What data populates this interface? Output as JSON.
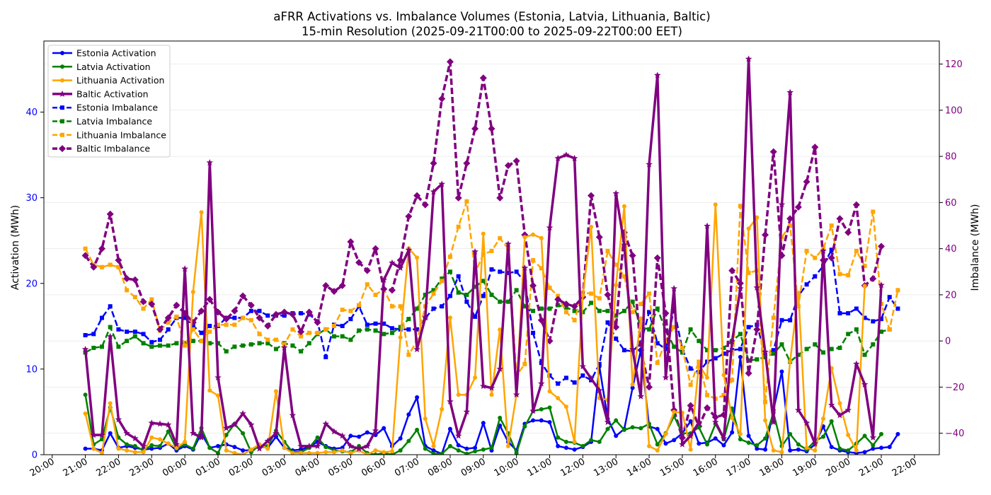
{
  "chart_data": {
    "type": "line",
    "title_line1": "aFRR Activations vs. Imbalance Volumes (Estonia, Latvia, Lithuania, Baltic)",
    "title_line2": "15-min Resolution (2025-09-21T00:00 to 2025-09-22T00:00 EET)",
    "ylabel_left": "Activation (MWh)",
    "ylabel_right": "Imbalance (MWh)",
    "ylim_left": [
      0,
      48.3
    ],
    "ylim_right": [
      -49.3,
      130
    ],
    "x_range_hours": [
      19.75,
      46.75
    ],
    "x_ticks": [
      {
        "h": 20,
        "label": "20:00"
      },
      {
        "h": 21,
        "label": "21:00"
      },
      {
        "h": 22,
        "label": "22:00"
      },
      {
        "h": 23,
        "label": "23:00"
      },
      {
        "h": 24,
        "label": "00:00"
      },
      {
        "h": 25,
        "label": "01:00"
      },
      {
        "h": 26,
        "label": "02:00"
      },
      {
        "h": 27,
        "label": "03:00"
      },
      {
        "h": 28,
        "label": "04:00"
      },
      {
        "h": 29,
        "label": "05:00"
      },
      {
        "h": 30,
        "label": "06:00"
      },
      {
        "h": 31,
        "label": "07:00"
      },
      {
        "h": 32,
        "label": "08:00"
      },
      {
        "h": 33,
        "label": "09:00"
      },
      {
        "h": 34,
        "label": "10:00"
      },
      {
        "h": 35,
        "label": "11:00"
      },
      {
        "h": 36,
        "label": "12:00"
      },
      {
        "h": 37,
        "label": "13:00"
      },
      {
        "h": 38,
        "label": "14:00"
      },
      {
        "h": 39,
        "label": "15:00"
      },
      {
        "h": 40,
        "label": "16:00"
      },
      {
        "h": 41,
        "label": "17:00"
      },
      {
        "h": 42,
        "label": "18:00"
      },
      {
        "h": 43,
        "label": "19:00"
      },
      {
        "h": 44,
        "label": "20:00"
      },
      {
        "h": 45,
        "label": "21:00"
      },
      {
        "h": 46,
        "label": "22:00"
      }
    ],
    "y_left_ticks": [
      0,
      10,
      20,
      30,
      40
    ],
    "y_right_ticks": [
      -40,
      -20,
      0,
      20,
      40,
      60,
      80,
      100,
      120
    ],
    "x_start_hour": 21,
    "x_step_hours": 0.25,
    "grid": true,
    "legend_position": "top-left",
    "series": [
      {
        "name": "Estonia Activation",
        "axis": "left",
        "color": "#0000ff",
        "marker": "circle",
        "dashed": false,
        "width": 2.5,
        "values": [
          0.7,
          0.7,
          0.5,
          2.5,
          0.8,
          1.0,
          0.8,
          0.6,
          0.7,
          0.8,
          1.3,
          0.5,
          1.0,
          0.6,
          2.5,
          0.8,
          1.0,
          1.2,
          0.9,
          0.5,
          0.5,
          1.0,
          0.8,
          2.1,
          0.8,
          0.5,
          0.6,
          0.9,
          1.5,
          1.0,
          0.7,
          0.8,
          2.2,
          2.1,
          2.6,
          2.3,
          3.1,
          1.0,
          1.9,
          4.7,
          6.7,
          1.0,
          0.5,
          0.1,
          3.0,
          1.1,
          0.7,
          0.8,
          3.7,
          0.5,
          3.4,
          1.5,
          0.5,
          3.6,
          4.0,
          4.0,
          3.8,
          1.0,
          0.8,
          0.6,
          0.9,
          1.5,
          10.3,
          4.2,
          2.2,
          3.0,
          7.8,
          12.2,
          3.3,
          3.0,
          1.3,
          1.7,
          2.5,
          3.9,
          1.3,
          1.4,
          1.9,
          1.1,
          2.6,
          11.4,
          2.2,
          0.7,
          0.6,
          5.2,
          9.7,
          0.5,
          0.6,
          0.4,
          1.2,
          3.3,
          0.9,
          0.5,
          0.3,
          0.2,
          0.3,
          0.7,
          0.8,
          0.9,
          2.4
        ]
      },
      {
        "name": "Latvia Activation",
        "axis": "left",
        "color": "#008000",
        "marker": "circle",
        "dashed": false,
        "width": 2.5,
        "values": [
          7.0,
          1.2,
          1.8,
          5.5,
          2.0,
          1.2,
          1.0,
          0.5,
          1.1,
          1.0,
          2.7,
          0.7,
          1.2,
          0.7,
          3.1,
          0.8,
          0.2,
          2.3,
          3.6,
          2.5,
          0.3,
          1.1,
          1.0,
          2.8,
          1.5,
          0.3,
          0.3,
          0.8,
          2.0,
          0.9,
          0.5,
          0.4,
          0.3,
          1.0,
          0.2,
          0.0,
          0.2,
          0.0,
          0.5,
          1.6,
          2.9,
          0.7,
          0.1,
          0.1,
          1.0,
          0.5,
          0.1,
          0.4,
          0.6,
          0.8,
          4.3,
          2.5,
          0.2,
          3.3,
          5.1,
          5.3,
          5.5,
          2.0,
          1.5,
          1.4,
          1.0,
          1.7,
          1.5,
          3.0,
          4.0,
          2.9,
          3.2,
          3.1,
          3.6,
          1.2,
          2.5,
          4.5,
          2.5,
          2.5,
          3.2,
          1.2,
          3.6,
          1.8,
          5.4,
          1.8,
          1.4,
          1.1,
          1.9,
          4.9,
          1.0,
          2.4,
          1.2,
          0.6,
          1.6,
          2.1,
          3.9,
          0.7,
          0.5,
          1.3,
          2.2,
          1.1,
          2.4
        ]
      },
      {
        "name": "Lithuania Activation",
        "axis": "left",
        "color": "#ffa500",
        "marker": "circle",
        "dashed": false,
        "width": 2.5,
        "values": [
          4.8,
          0.7,
          0.2,
          6.0,
          0.7,
          0.5,
          0.3,
          0.3,
          2.0,
          1.8,
          1.3,
          0.8,
          1.5,
          19.0,
          28.3,
          7.5,
          6.9,
          0.5,
          0.2,
          0.0,
          0.6,
          1.2,
          0.7,
          7.4,
          0.8,
          0.2,
          0.2,
          0.2,
          0.2,
          0.3,
          0.3,
          0.5,
          0.2,
          0.5,
          0.0,
          0.5,
          0.3,
          0.4,
          13.7,
          24.1,
          23.0,
          4.2,
          1.0,
          5.3,
          16.0,
          7.0,
          7.0,
          9.0,
          25.8,
          7.0,
          14.6,
          1.0,
          7.0,
          25.4,
          25.7,
          25.3,
          7.4,
          6.6,
          5.6,
          1.5,
          18.6,
          26.6,
          6.6,
          6.4,
          19.8,
          29.0,
          8.2,
          15.9,
          1.0,
          0.5,
          2.4,
          5.0,
          4.9,
          0.6,
          10.5,
          9.0,
          29.2,
          9.3,
          4.3,
          2.4,
          26.4,
          27.7,
          4.0,
          0.5,
          0.3,
          10.9,
          18.9,
          0.8,
          0.5,
          4.2,
          10.1,
          6.0,
          2.3,
          0.5,
          19.7
        ]
      },
      {
        "name": "Baltic Activation",
        "axis": "left",
        "color": "#800080",
        "marker": "star",
        "dashed": false,
        "width": 3.5,
        "values": [
          12.3,
          2.3,
          2.3,
          13.8,
          4.1,
          2.5,
          1.9,
          1.0,
          3.7,
          3.6,
          3.5,
          1.2,
          21.7,
          2.5,
          2.0,
          34.1,
          9.0,
          3.1,
          3.5,
          4.8,
          3.5,
          0.7,
          1.6,
          2.5,
          12.5,
          4.6,
          1.0,
          1.0,
          1.0,
          3.6,
          2.7,
          2.2,
          1.0,
          0.7,
          1.0,
          2.8,
          20.4,
          22.4,
          21.8,
          23.9,
          12.3,
          16.0,
          30.7,
          31.6,
          6.2,
          2.2,
          5.0,
          23.7,
          8.0,
          7.8,
          10.0,
          24.6,
          7.0,
          21.8,
          5.1,
          8.3,
          26.5,
          34.6,
          35.0,
          34.6,
          10.3,
          8.9,
          7.5,
          3.8,
          30.5,
          24.5,
          12.3,
          6.8,
          33.9,
          44.3,
          9.0,
          19.4,
          1.2,
          2.2,
          3.8,
          26.7,
          3.8,
          1.9,
          13.2,
          19.4,
          46.2,
          19.5,
          12.0,
          3.8,
          29.2,
          42.3,
          5.2,
          3.7,
          1.3,
          23.8,
          5.8,
          4.6,
          5.2,
          10.6,
          8.2,
          2.0,
          19.8
        ]
      },
      {
        "name": "Estonia Imbalance",
        "axis": "right",
        "color": "#0000ff",
        "marker": "square",
        "dashed": true,
        "width": 2.5,
        "values": [
          2.5,
          3.0,
          10.0,
          15.0,
          5.0,
          4.0,
          4.0,
          3.0,
          -0.5,
          0.5,
          5.0,
          10.0,
          10.0,
          6.5,
          3.5,
          6.5,
          6.5,
          10.0,
          10.0,
          10.0,
          13.0,
          13.0,
          11.0,
          11.0,
          11.0,
          12.0,
          12.0,
          11.5,
          8.5,
          -7.0,
          7.0,
          6.5,
          9.5,
          15.0,
          7.0,
          7.5,
          7.5,
          5.5,
          5.0,
          5.0,
          5.0,
          10.0,
          14.0,
          15.0,
          19.5,
          28.0,
          17.0,
          10.5,
          19.5,
          31.0,
          30.0,
          29.5,
          30.0,
          25.5,
          3.5,
          -9.5,
          -15.0,
          -18.5,
          -16.0,
          -18.0,
          -15.0,
          -17.0,
          -10.0,
          8.0,
          1.0,
          -4.0,
          -4.5,
          -1.0,
          12.5,
          -1.0,
          -3.5,
          14.0,
          -3.5,
          -12.0,
          -13.5,
          -9.0,
          -7.5,
          -5.5,
          -4.0,
          -3.5,
          6.0,
          7.0,
          -6.0,
          -4.0,
          9.0,
          9.0,
          19.5,
          24.5,
          28.0,
          32.5,
          39.5,
          12.0,
          12.0,
          14.0,
          10.0,
          8.5,
          9.5,
          19.0,
          14.0
        ]
      },
      {
        "name": "Latvia Imbalance",
        "axis": "right",
        "color": "#008000",
        "marker": "square",
        "dashed": true,
        "width": 2.5,
        "values": [
          -5.0,
          -3.0,
          -2.5,
          6.0,
          -2.5,
          0.0,
          2.0,
          -1.0,
          -2.5,
          -2.0,
          -2.0,
          -1.0,
          -1.0,
          0.0,
          0.0,
          -1.0,
          -1.0,
          -4.5,
          -2.5,
          -2.0,
          -1.5,
          -1.0,
          -1.0,
          -3.5,
          -1.0,
          -2.0,
          -4.5,
          -1.0,
          3.0,
          5.0,
          2.0,
          2.0,
          0.5,
          4.5,
          5.0,
          4.5,
          3.0,
          3.5,
          6.0,
          9.5,
          14.0,
          20.0,
          22.0,
          27.0,
          30.0,
          21.0,
          20.0,
          23.5,
          26.0,
          20.0,
          17.0,
          17.0,
          22.0,
          15.0,
          13.0,
          14.0,
          14.0,
          15.5,
          14.5,
          13.0,
          12.5,
          16.5,
          13.0,
          13.0,
          11.0,
          13.0,
          17.0,
          6.0,
          5.0,
          14.0,
          4.5,
          -2.5,
          -5.0,
          5.0,
          0.0,
          -4.0,
          -4.0,
          -3.0,
          0.0,
          3.0,
          -8.5,
          -8.0,
          -7.0,
          -5.5,
          -1.5,
          -9.0,
          -6.0,
          -3.5,
          -1.5,
          -5.0,
          -3.5,
          -3.0,
          3.0,
          5.0,
          -6.0,
          -1.5,
          4.0,
          5.0
        ]
      },
      {
        "name": "Lithuania Imbalance",
        "axis": "right",
        "color": "#ffa500",
        "marker": "square",
        "dashed": true,
        "width": 2.5,
        "values": [
          40.0,
          33.0,
          32.0,
          33.0,
          32.0,
          22.0,
          19.0,
          14.0,
          18.0,
          4.5,
          8.0,
          10.5,
          -2.0,
          5.0,
          0.0,
          4.0,
          7.0,
          7.0,
          7.0,
          10.0,
          9.0,
          3.0,
          0.5,
          0.5,
          -1.5,
          5.0,
          2.0,
          3.5,
          3.5,
          5.0,
          6.5,
          13.5,
          13.0,
          15.5,
          24.5,
          20.0,
          22.5,
          15.0,
          15.0,
          -6.0,
          0.0,
          15.0,
          20.5,
          26.0,
          36.5,
          49.5,
          60.5,
          29.5,
          37.5,
          39.0,
          44.5,
          40.0,
          -15.0,
          -10.0,
          35.0,
          31.5,
          23.0,
          19.5,
          12.5,
          9.0,
          21.0,
          20.5,
          18.5,
          39.0,
          33.0,
          28.0,
          12.5,
          16.0,
          20.5,
          -9.5,
          0.0,
          6.0,
          -3.0,
          -19.0,
          -9.0,
          -23.5,
          -25.0,
          -23.5,
          -17.0,
          58.5,
          29.5,
          30.5,
          -26.5,
          10.0,
          45.0,
          50.0,
          15.0,
          39.0,
          36.0,
          40.0,
          50.0,
          29.0,
          28.5,
          39.0,
          32.5,
          56.0,
          16.0,
          5.0,
          22.0
        ]
      },
      {
        "name": "Baltic Imbalance",
        "axis": "right",
        "color": "#800080",
        "marker": "diamond",
        "dashed": true,
        "width": 3.5,
        "values": [
          37.0,
          32.0,
          40.0,
          55.0,
          35.0,
          27.0,
          26.5,
          17.0,
          16.0,
          5.0,
          10.0,
          15.5,
          12.0,
          8.0,
          13.0,
          18.0,
          12.5,
          9.5,
          13.0,
          19.5,
          15.5,
          10.0,
          6.5,
          11.5,
          12.5,
          11.5,
          4.0,
          12.5,
          8.0,
          24.0,
          21.5,
          24.0,
          43.0,
          34.0,
          30.5,
          40.0,
          22.5,
          22.0,
          35.0,
          54.0,
          63.0,
          59.0,
          77.0,
          105.0,
          121.0,
          62.0,
          77.0,
          92.0,
          114.0,
          92.0,
          62.0,
          76.0,
          78.0,
          46.0,
          24.0,
          9.0,
          0.0,
          18.0,
          16.0,
          15.0,
          19.0,
          63.0,
          45.0,
          20.0,
          6.0,
          47.0,
          37.0,
          -4.0,
          -20.0,
          36.0,
          12.0,
          -30.0,
          -42.0,
          -28.0,
          -37.0,
          -29.0,
          -33.0,
          -32.0,
          30.5,
          25.0,
          -14.0,
          5.0,
          46.0,
          82.0,
          37.0,
          53.0,
          58.0,
          69.0,
          84.0,
          35.0,
          36.0,
          53.0,
          47.0,
          59.0,
          24.0,
          27.0,
          41.0
        ]
      }
    ]
  }
}
